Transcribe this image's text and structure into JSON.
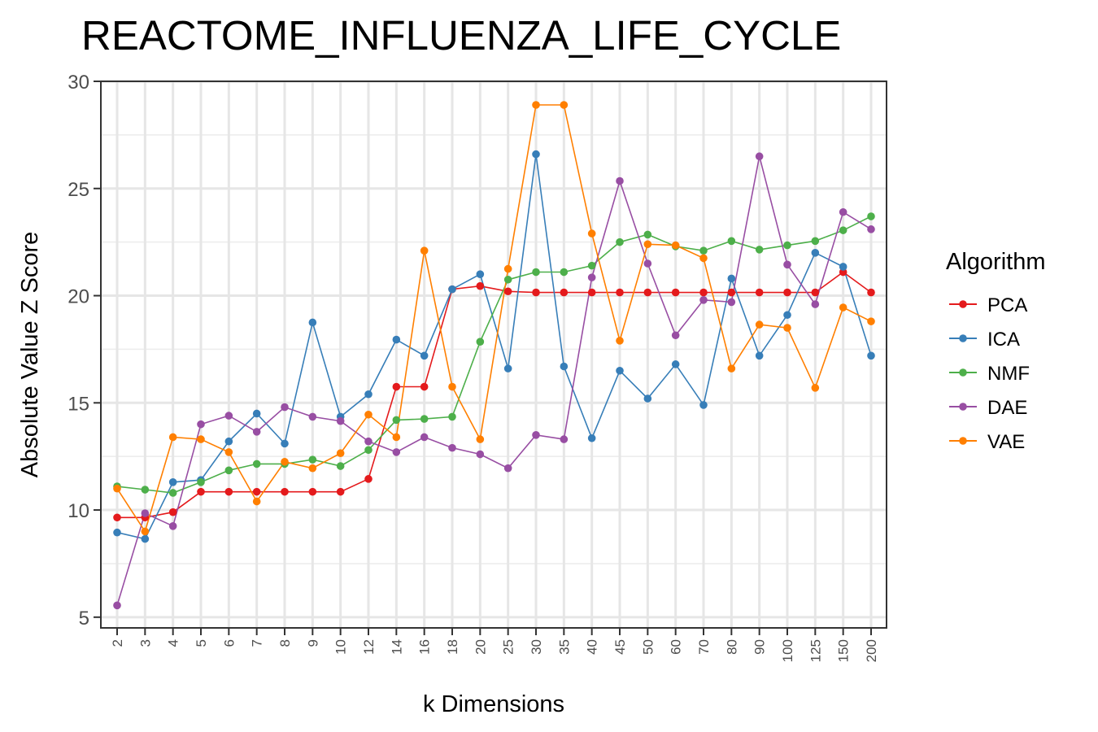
{
  "chart_data": {
    "type": "line",
    "title": "REACTOME_INFLUENZA_LIFE_CYCLE",
    "xlabel": "k Dimensions",
    "ylabel": "Absolute Value Z Score",
    "x": [
      "2",
      "3",
      "4",
      "5",
      "6",
      "7",
      "8",
      "9",
      "10",
      "12",
      "14",
      "16",
      "18",
      "20",
      "25",
      "30",
      "35",
      "40",
      "45",
      "50",
      "60",
      "70",
      "80",
      "90",
      "100",
      "125",
      "150",
      "200"
    ],
    "ylim": [
      4.5,
      30
    ],
    "yticks": [
      5,
      10,
      15,
      20,
      25,
      30
    ],
    "grid": true,
    "legend": {
      "title": "Algorithm",
      "position": "right"
    },
    "series": [
      {
        "name": "PCA",
        "color": "#E41A1C",
        "values": [
          9.65,
          9.65,
          9.9,
          10.85,
          10.85,
          10.85,
          10.85,
          10.85,
          10.85,
          11.45,
          15.75,
          15.75,
          20.3,
          20.45,
          20.2,
          20.15,
          20.15,
          20.15,
          20.15,
          20.15,
          20.15,
          20.15,
          20.15,
          20.15,
          20.15,
          20.15,
          21.1,
          20.15
        ]
      },
      {
        "name": "ICA",
        "color": "#377EB8",
        "values": [
          8.95,
          8.65,
          11.3,
          11.4,
          13.2,
          14.5,
          13.1,
          18.75,
          14.35,
          15.4,
          17.95,
          17.2,
          20.3,
          21.0,
          16.6,
          26.6,
          16.7,
          13.35,
          16.5,
          15.2,
          16.8,
          14.9,
          20.8,
          17.2,
          19.1,
          22.0,
          21.35,
          17.2
        ]
      },
      {
        "name": "NMF",
        "color": "#4DAF4A",
        "values": [
          11.1,
          10.95,
          10.8,
          11.3,
          11.85,
          12.15,
          12.15,
          12.35,
          12.05,
          12.8,
          14.2,
          14.25,
          14.35,
          17.85,
          20.75,
          21.1,
          21.1,
          21.4,
          22.5,
          22.85,
          22.3,
          22.1,
          22.55,
          22.15,
          22.35,
          22.55,
          23.05,
          23.7
        ]
      },
      {
        "name": "DAE",
        "color": "#984EA3",
        "values": [
          5.55,
          9.85,
          9.25,
          14.0,
          14.4,
          13.65,
          14.8,
          14.35,
          14.15,
          13.2,
          12.7,
          13.4,
          12.9,
          12.6,
          11.95,
          13.5,
          13.3,
          20.85,
          25.35,
          21.5,
          18.15,
          19.8,
          19.7,
          26.5,
          21.45,
          19.6,
          23.9,
          23.1
        ]
      },
      {
        "name": "VAE",
        "color": "#FF7F00",
        "values": [
          11.0,
          9.0,
          13.4,
          13.3,
          12.7,
          10.4,
          12.25,
          11.95,
          12.65,
          14.45,
          13.4,
          22.1,
          15.75,
          13.3,
          21.25,
          28.9,
          28.9,
          22.9,
          17.9,
          22.4,
          22.35,
          21.75,
          16.6,
          18.65,
          18.5,
          15.7,
          19.45,
          18.8
        ]
      }
    ]
  }
}
